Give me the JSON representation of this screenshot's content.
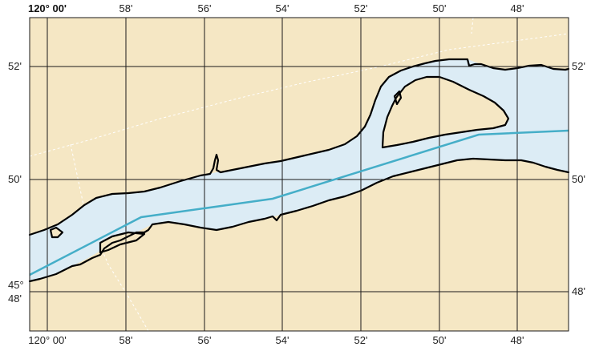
{
  "map": {
    "colors": {
      "land": "#f5e7c4",
      "water": "#dcecf5",
      "shoreline": "#000000",
      "grid": "#1a1a1a",
      "route": "#45aec8",
      "dashed_boundary": "#ffffff"
    },
    "longitude_labels_top": [
      "120° 00'",
      "58'",
      "56'",
      "54'",
      "52'",
      "50'",
      "48'"
    ],
    "longitude_labels_bottom": [
      "120° 00'",
      "58'",
      "56'",
      "54'",
      "52'",
      "50'",
      "48'"
    ],
    "latitude_labels_left": [
      "52'",
      "50'",
      "45°",
      "48'"
    ],
    "latitude_labels_right": [
      "52'",
      "50'",
      "48'"
    ]
  }
}
